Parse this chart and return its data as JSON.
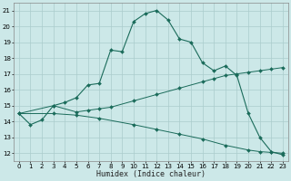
{
  "xlabel": "Humidex (Indice chaleur)",
  "ylabel": "",
  "bg_color": "#cce8e8",
  "grid_color": "#aacccc",
  "line_color": "#1a6b5a",
  "xlim": [
    -0.5,
    23.5
  ],
  "ylim": [
    11.5,
    21.5
  ],
  "xticks": [
    0,
    1,
    2,
    3,
    4,
    5,
    6,
    7,
    8,
    9,
    10,
    11,
    12,
    13,
    14,
    15,
    16,
    17,
    18,
    19,
    20,
    21,
    22,
    23
  ],
  "yticks": [
    12,
    13,
    14,
    15,
    16,
    17,
    18,
    19,
    20,
    21
  ],
  "line1_x": [
    0,
    1,
    2,
    3,
    4,
    5,
    6,
    7,
    8,
    9,
    10,
    11,
    12,
    13,
    14,
    15,
    16,
    17,
    18,
    19,
    20,
    21,
    22,
    23
  ],
  "line1_y": [
    14.5,
    13.8,
    14.1,
    15.0,
    15.2,
    15.5,
    16.3,
    16.4,
    18.5,
    18.4,
    20.3,
    20.8,
    21.0,
    20.4,
    19.2,
    19.0,
    17.7,
    17.2,
    17.5,
    16.9,
    14.5,
    13.0,
    12.1,
    11.9
  ],
  "line2_x": [
    0,
    3,
    5,
    6,
    7,
    8,
    10,
    12,
    14,
    16,
    17,
    18,
    19,
    20,
    21,
    22,
    23
  ],
  "line2_y": [
    14.5,
    15.0,
    14.6,
    14.7,
    14.8,
    14.9,
    15.3,
    15.7,
    16.1,
    16.5,
    16.7,
    16.9,
    17.0,
    17.1,
    17.2,
    17.3,
    17.4
  ],
  "line3_x": [
    0,
    3,
    5,
    7,
    10,
    12,
    14,
    16,
    18,
    20,
    21,
    22,
    23
  ],
  "line3_y": [
    14.5,
    14.5,
    14.4,
    14.2,
    13.8,
    13.5,
    13.2,
    12.9,
    12.5,
    12.2,
    12.1,
    12.05,
    12.0
  ]
}
